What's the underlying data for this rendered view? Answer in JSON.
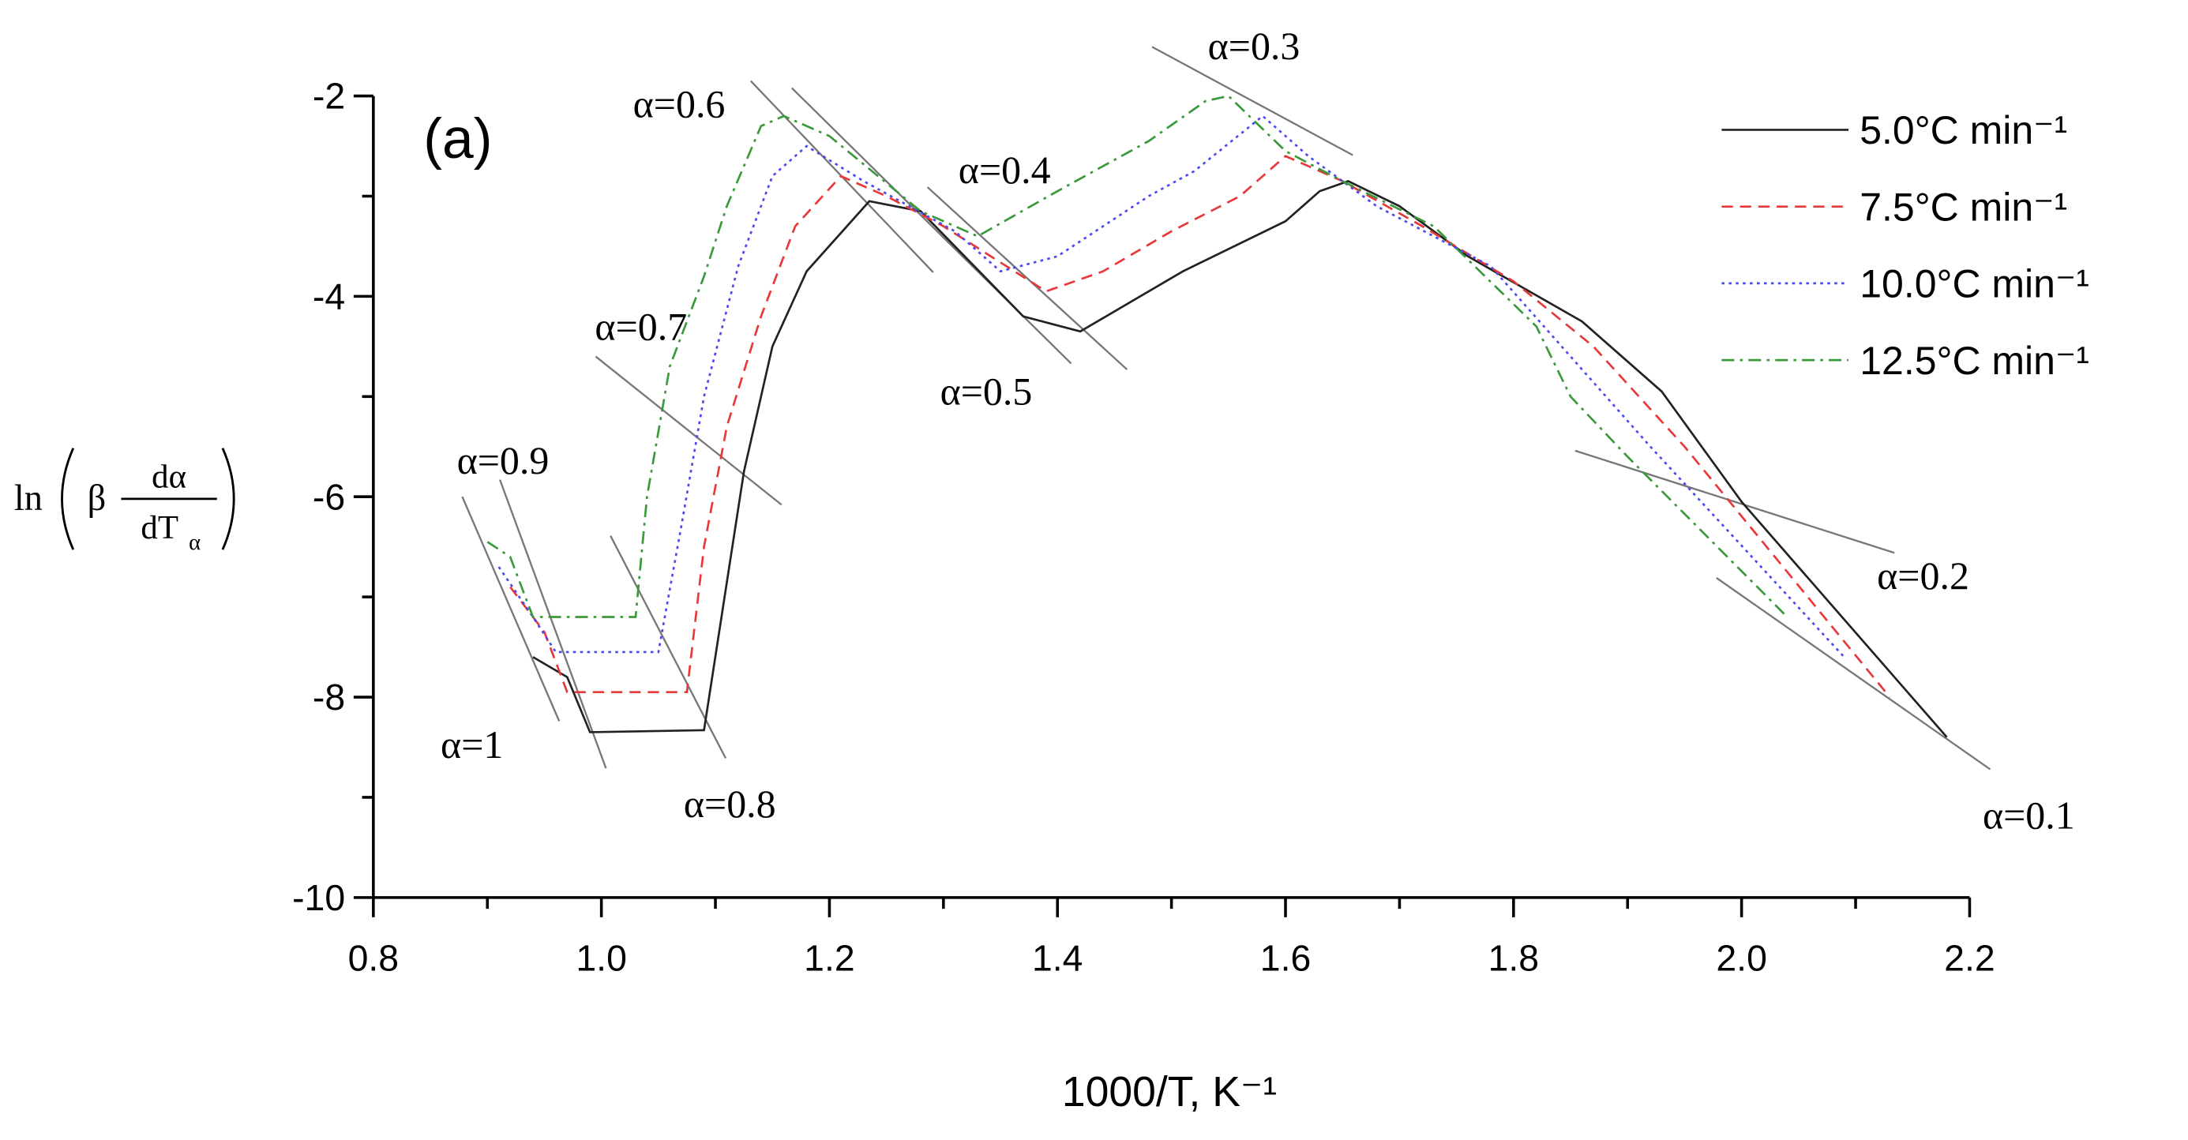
{
  "chart_data": {
    "type": "line",
    "title": "(a)",
    "x_label": "1000/T, K⁻¹",
    "y_label": {
      "prefix": "ln",
      "beta": "β",
      "numerator": "dα",
      "denominator": "dT",
      "subscript": "α"
    },
    "xlim": [
      0.8,
      2.2
    ],
    "ylim": [
      -10,
      -2
    ],
    "xticks": [
      0.8,
      {
        "value": 1,
        "label": "1.0"
      },
      1.2,
      1.4,
      1.6,
      1.8,
      {
        "value": 2,
        "label": "2.0"
      },
      2.2
    ],
    "yticks": [
      -10,
      -8,
      -6,
      -4,
      -2
    ],
    "xminorticks": [
      0.9,
      1.1,
      1.3,
      1.5,
      1.7,
      1.9,
      2.1
    ],
    "yminorticks": [
      -9,
      -7,
      -5,
      -3
    ],
    "legend": "upper right",
    "series": [
      {
        "name": "5.0°C min⁻¹",
        "color": "#222222",
        "dash": "solid",
        "x": [
          0.94,
          0.97,
          0.99,
          1.09,
          1.125,
          1.15,
          1.18,
          1.235,
          1.28,
          1.37,
          1.42,
          1.51,
          1.6,
          1.63,
          1.655,
          1.7,
          1.76,
          1.86,
          1.93,
          2.0,
          2.18
        ],
        "values": [
          -7.6,
          -7.8,
          -8.35,
          -8.33,
          -5.75,
          -4.5,
          -3.75,
          -3.05,
          -3.15,
          -4.2,
          -4.35,
          -3.75,
          -3.25,
          -2.95,
          -2.85,
          -3.1,
          -3.6,
          -4.25,
          -4.95,
          -6.05,
          -8.4
        ]
      },
      {
        "name": "7.5°C min⁻¹",
        "color": "#e8393a",
        "dash": "dashed",
        "x": [
          0.92,
          0.95,
          0.97,
          1.075,
          1.09,
          1.11,
          1.14,
          1.17,
          1.21,
          1.25,
          1.3,
          1.39,
          1.44,
          1.5,
          1.56,
          1.6,
          1.65,
          1.72,
          1.8,
          1.87,
          1.95,
          2.13
        ],
        "values": [
          -6.9,
          -7.35,
          -7.95,
          -7.95,
          -6.5,
          -5.3,
          -4.2,
          -3.3,
          -2.8,
          -3.0,
          -3.3,
          -3.95,
          -3.75,
          -3.35,
          -3.0,
          -2.6,
          -2.85,
          -3.3,
          -3.85,
          -4.5,
          -5.5,
          -8.0
        ]
      },
      {
        "name": "10.0°C min⁻¹",
        "color": "#4a4af0",
        "dash": "dotted",
        "x": [
          0.91,
          0.94,
          0.96,
          1.05,
          1.07,
          1.09,
          1.12,
          1.15,
          1.18,
          1.23,
          1.31,
          1.35,
          1.4,
          1.48,
          1.52,
          1.58,
          1.62,
          1.68,
          1.78,
          1.85,
          1.92,
          2.09
        ],
        "values": [
          -6.7,
          -7.2,
          -7.55,
          -7.55,
          -6.3,
          -5.0,
          -3.7,
          -2.8,
          -2.5,
          -2.85,
          -3.35,
          -3.75,
          -3.6,
          -3.0,
          -2.75,
          -2.2,
          -2.6,
          -3.1,
          -3.7,
          -4.6,
          -5.5,
          -7.6
        ]
      },
      {
        "name": "12.5°C min⁻¹",
        "color": "#3a9a3a",
        "dash": "dashdot",
        "x": [
          0.9,
          0.92,
          0.94,
          1.03,
          1.04,
          1.06,
          1.09,
          1.11,
          1.14,
          1.16,
          1.2,
          1.28,
          1.33,
          1.4,
          1.48,
          1.53,
          1.55,
          1.6,
          1.65,
          1.73,
          1.82,
          1.85,
          1.9,
          2.04
        ],
        "values": [
          -6.45,
          -6.6,
          -7.2,
          -7.2,
          -6.0,
          -4.7,
          -3.8,
          -3.1,
          -2.3,
          -2.2,
          -2.4,
          -3.15,
          -3.4,
          -2.95,
          -2.45,
          -2.05,
          -2.0,
          -2.55,
          -2.85,
          -3.3,
          -4.3,
          -5.0,
          -5.6,
          -7.2
        ]
      }
    ],
    "isolines": [
      {
        "label": "α=0.1",
        "x": [
          1.978,
          2.218
        ],
        "y": [
          -6.81,
          -8.72
        ]
      },
      {
        "label": "α=0.2",
        "x": [
          1.854,
          2.134
        ],
        "y": [
          -5.54,
          -6.56
        ]
      },
      {
        "label": "α=0.3",
        "x": [
          1.483,
          1.659
        ],
        "y": [
          -1.51,
          -2.59
        ]
      },
      {
        "label": "α=0.4",
        "x": [
          1.286,
          1.461
        ],
        "y": [
          -2.91,
          -4.73
        ]
      },
      {
        "label": "α=0.5",
        "x": [
          1.167,
          1.412
        ],
        "y": [
          -1.92,
          -4.67
        ]
      },
      {
        "label": "α=0.6",
        "x": [
          1.131,
          1.291
        ],
        "y": [
          -1.85,
          -3.76
        ]
      },
      {
        "label": "α=0.7",
        "x": [
          0.995,
          1.158
        ],
        "y": [
          -4.6,
          -6.08
        ]
      },
      {
        "label": "α=0.8",
        "x": [
          1.008,
          1.109
        ],
        "y": [
          -6.39,
          -8.61
        ]
      },
      {
        "label": "α=0.9",
        "x": [
          0.911,
          1.004
        ],
        "y": [
          -5.83,
          -8.71
        ]
      },
      {
        "label": "α=1",
        "x": [
          0.878,
          0.963
        ],
        "y": [
          -6.0,
          -8.24
        ]
      }
    ]
  }
}
